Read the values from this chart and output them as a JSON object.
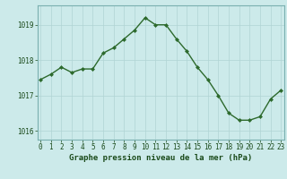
{
  "x": [
    0,
    1,
    2,
    3,
    4,
    5,
    6,
    7,
    8,
    9,
    10,
    11,
    12,
    13,
    14,
    15,
    16,
    17,
    18,
    19,
    20,
    21,
    22,
    23
  ],
  "y": [
    1017.45,
    1017.6,
    1017.8,
    1017.65,
    1017.75,
    1017.75,
    1018.2,
    1018.35,
    1018.6,
    1018.85,
    1019.2,
    1019.0,
    1019.0,
    1018.6,
    1018.25,
    1017.8,
    1017.45,
    1017.0,
    1016.5,
    1016.3,
    1016.3,
    1016.4,
    1016.9,
    1017.15
  ],
  "line_color": "#2d6a2d",
  "marker": "D",
  "marker_size": 2.0,
  "line_width": 1.0,
  "bg_color": "#cceaea",
  "grid_color_major": "#b0d4d4",
  "grid_color_minor": "#c4e2e2",
  "xlabel": "Graphe pression niveau de la mer (hPa)",
  "xlabel_color": "#1a4a1a",
  "xlabel_fontsize": 6.5,
  "tick_color": "#1a4a1a",
  "tick_fontsize": 5.5,
  "ylim": [
    1015.75,
    1019.55
  ],
  "yticks": [
    1016,
    1017,
    1018,
    1019
  ],
  "xlim": [
    -0.3,
    23.3
  ],
  "xticks": [
    0,
    1,
    2,
    3,
    4,
    5,
    6,
    7,
    8,
    9,
    10,
    11,
    12,
    13,
    14,
    15,
    16,
    17,
    18,
    19,
    20,
    21,
    22,
    23
  ]
}
